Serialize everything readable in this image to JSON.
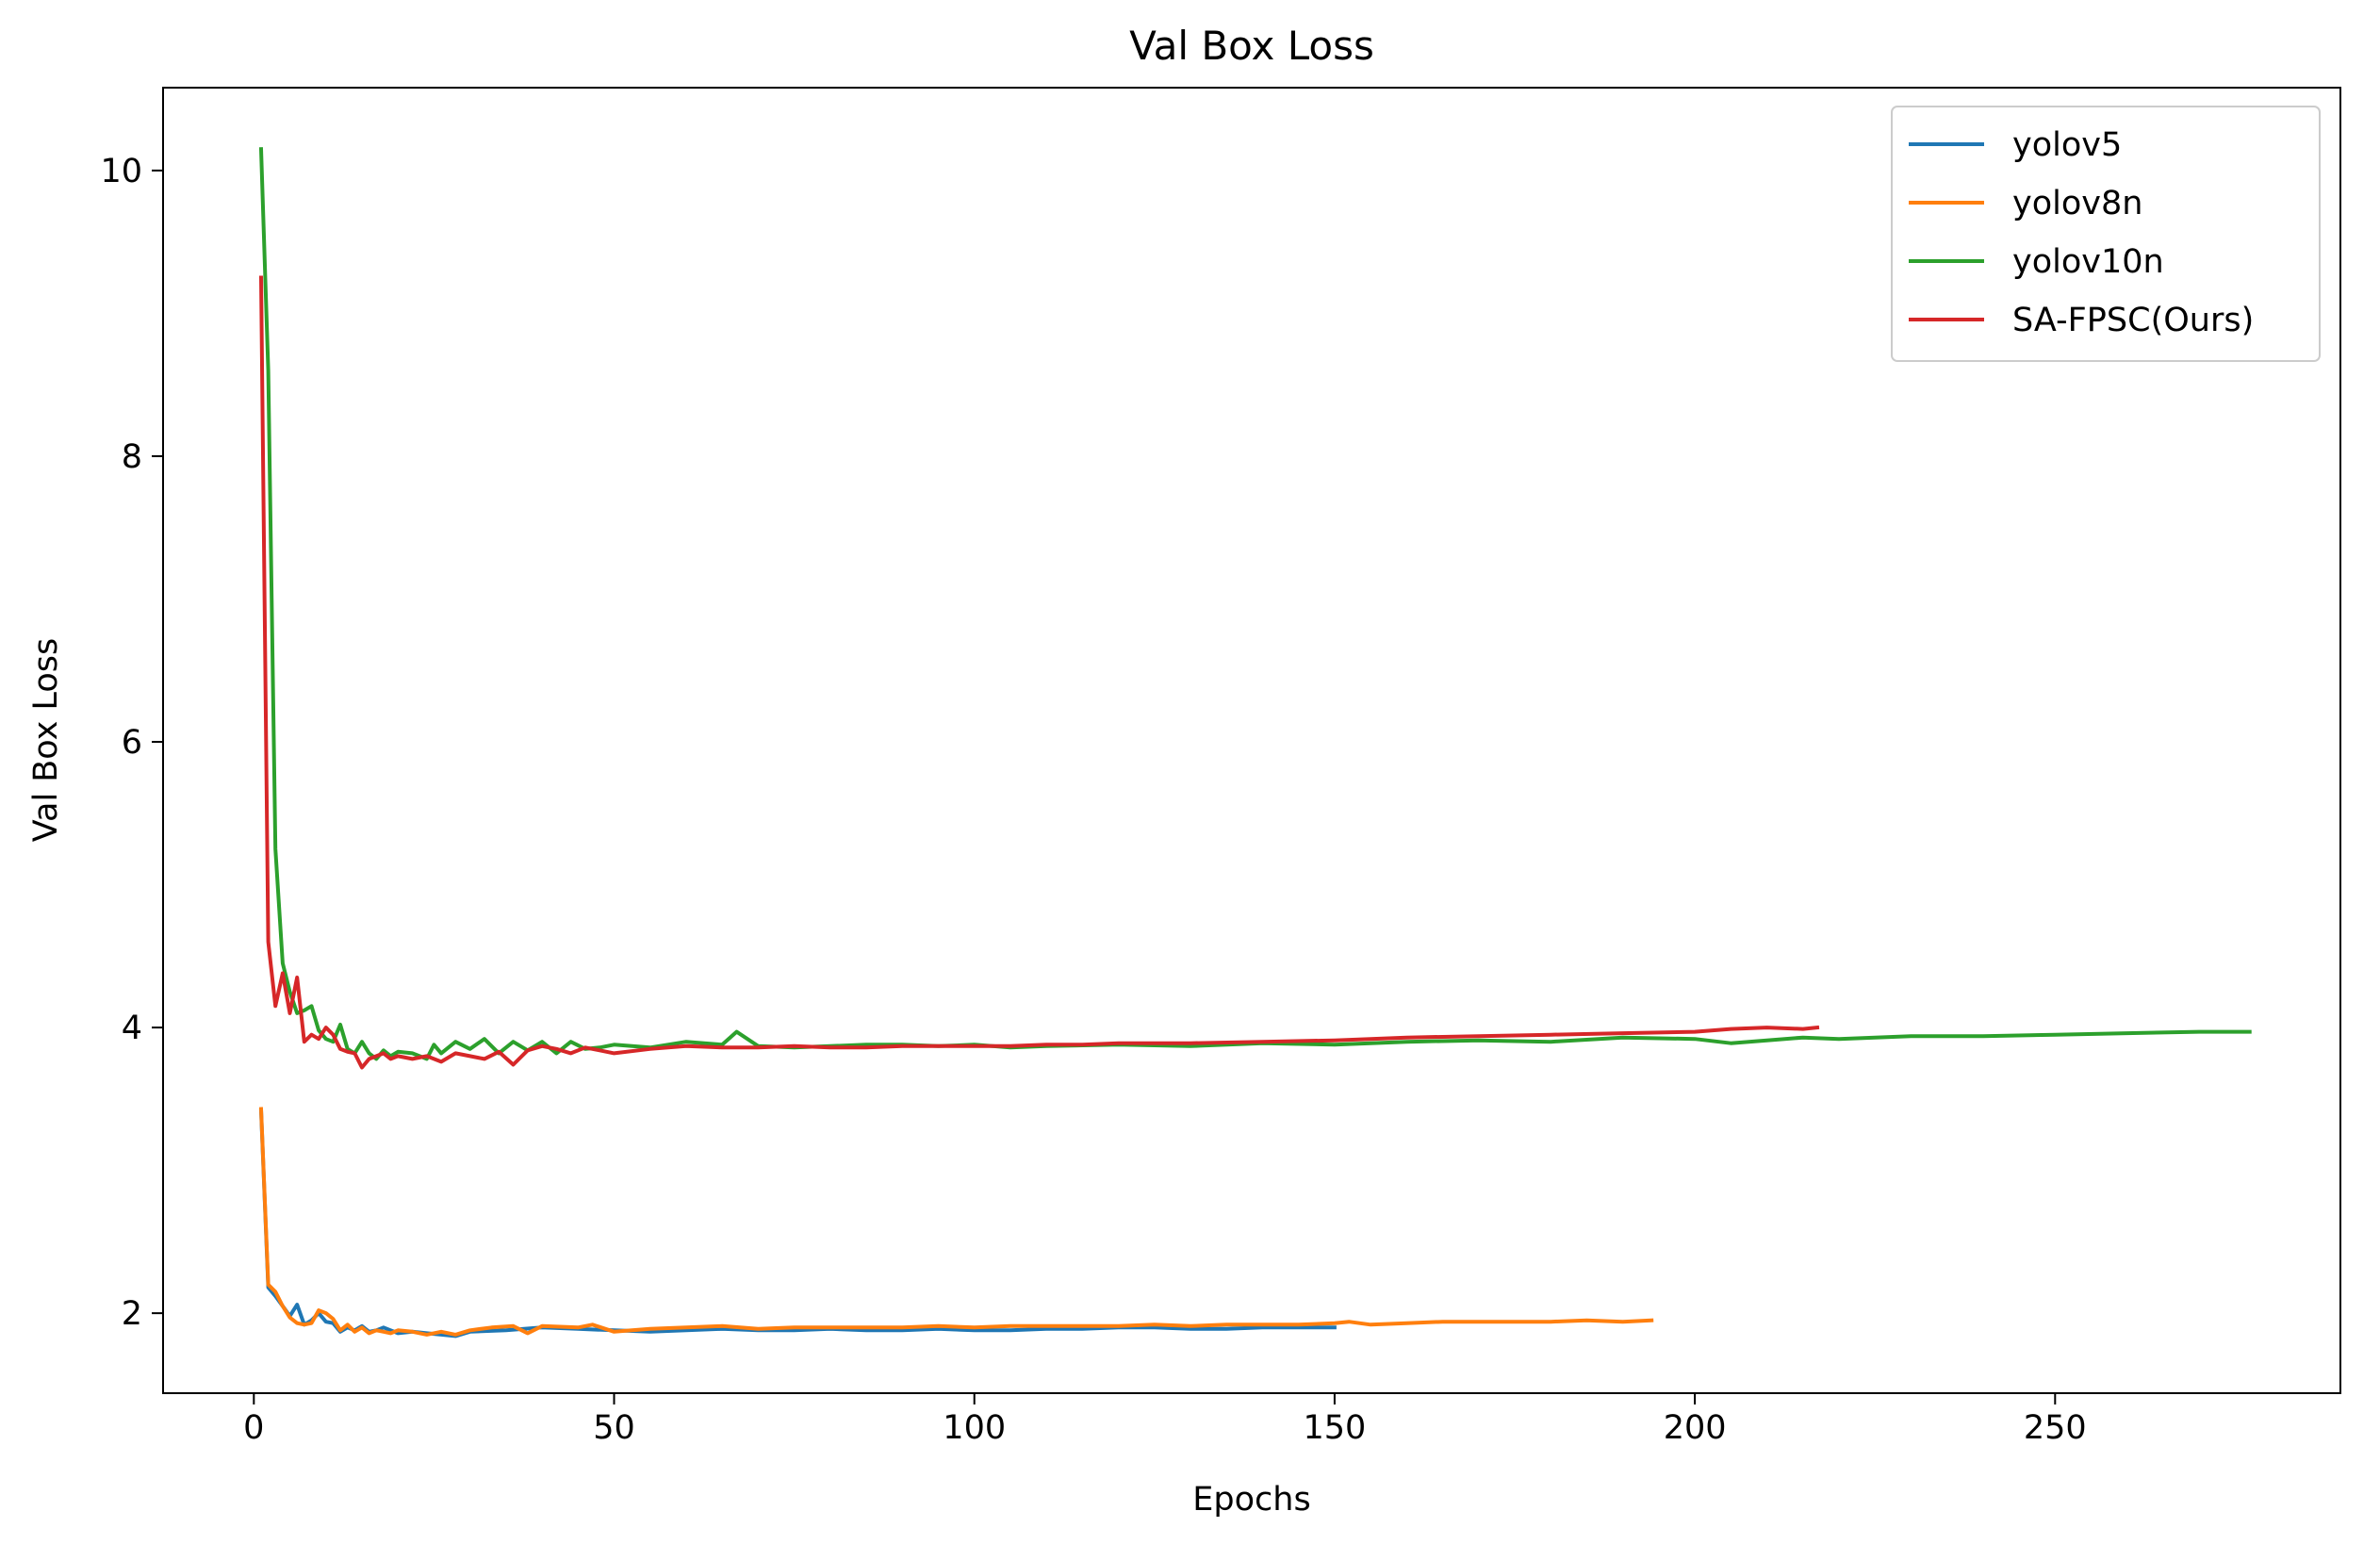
{
  "chart_data": {
    "type": "line",
    "title": "Val Box Loss",
    "xlabel": "Epochs",
    "ylabel": "Val Box Loss",
    "xlim": [
      -12.6,
      289.6
    ],
    "ylim": [
      1.44,
      10.58
    ],
    "xticks": [
      0,
      50,
      100,
      150,
      200,
      250
    ],
    "yticks": [
      2,
      4,
      6,
      8,
      10
    ],
    "grid": false,
    "legend_position": "top-right",
    "series": [
      {
        "name": "yolov5",
        "color": "#1f77b4",
        "x": [
          1,
          2,
          3,
          4,
          5,
          6,
          7,
          8,
          9,
          10,
          11,
          12,
          13,
          14,
          15,
          16,
          17,
          18,
          19,
          20,
          22,
          24,
          26,
          28,
          30,
          35,
          40,
          45,
          50,
          55,
          60,
          65,
          70,
          75,
          80,
          85,
          90,
          95,
          100,
          105,
          110,
          115,
          120,
          125,
          130,
          135,
          140,
          145,
          150
        ],
        "y": [
          3.42,
          2.18,
          2.12,
          2.05,
          1.98,
          2.06,
          1.92,
          1.95,
          2.0,
          1.94,
          1.93,
          1.87,
          1.9,
          1.88,
          1.91,
          1.87,
          1.88,
          1.9,
          1.88,
          1.86,
          1.87,
          1.86,
          1.85,
          1.84,
          1.87,
          1.88,
          1.9,
          1.89,
          1.88,
          1.87,
          1.88,
          1.89,
          1.88,
          1.88,
          1.89,
          1.88,
          1.88,
          1.89,
          1.88,
          1.88,
          1.89,
          1.89,
          1.9,
          1.9,
          1.89,
          1.89,
          1.9,
          1.9,
          1.9
        ]
      },
      {
        "name": "yolov8n",
        "color": "#ff7f0e",
        "x": [
          1,
          2,
          3,
          4,
          5,
          6,
          7,
          8,
          9,
          10,
          11,
          12,
          13,
          14,
          15,
          16,
          17,
          18,
          19,
          20,
          22,
          24,
          26,
          28,
          30,
          33,
          36,
          38,
          40,
          45,
          47,
          50,
          55,
          60,
          65,
          70,
          75,
          80,
          85,
          90,
          95,
          100,
          105,
          110,
          115,
          120,
          125,
          130,
          135,
          140,
          145,
          150,
          152,
          155,
          160,
          165,
          170,
          175,
          180,
          185,
          190,
          194
        ],
        "y": [
          3.43,
          2.2,
          2.15,
          2.05,
          1.97,
          1.93,
          1.92,
          1.93,
          2.02,
          2.0,
          1.96,
          1.88,
          1.92,
          1.87,
          1.9,
          1.86,
          1.88,
          1.87,
          1.86,
          1.88,
          1.87,
          1.85,
          1.87,
          1.85,
          1.88,
          1.9,
          1.91,
          1.86,
          1.91,
          1.9,
          1.92,
          1.87,
          1.89,
          1.9,
          1.91,
          1.89,
          1.9,
          1.9,
          1.9,
          1.9,
          1.91,
          1.9,
          1.91,
          1.91,
          1.91,
          1.91,
          1.92,
          1.91,
          1.92,
          1.92,
          1.92,
          1.93,
          1.94,
          1.92,
          1.93,
          1.94,
          1.94,
          1.94,
          1.94,
          1.95,
          1.94,
          1.95
        ]
      },
      {
        "name": "yolov10n",
        "color": "#2ca02c",
        "x": [
          1,
          2,
          3,
          4,
          5,
          6,
          7,
          8,
          9,
          10,
          11,
          12,
          13,
          14,
          15,
          16,
          17,
          18,
          19,
          20,
          22,
          24,
          25,
          26,
          28,
          30,
          32,
          34,
          36,
          38,
          40,
          42,
          44,
          46,
          48,
          50,
          55,
          60,
          65,
          67,
          70,
          75,
          80,
          85,
          90,
          95,
          100,
          105,
          110,
          120,
          130,
          140,
          150,
          160,
          170,
          180,
          190,
          200,
          205,
          210,
          215,
          220,
          230,
          240,
          250,
          260,
          270,
          277
        ],
        "y": [
          10.15,
          8.6,
          5.25,
          4.45,
          4.25,
          4.1,
          4.12,
          4.15,
          3.98,
          3.92,
          3.9,
          4.02,
          3.85,
          3.82,
          3.9,
          3.82,
          3.78,
          3.84,
          3.8,
          3.83,
          3.82,
          3.78,
          3.88,
          3.82,
          3.9,
          3.85,
          3.92,
          3.82,
          3.9,
          3.84,
          3.9,
          3.82,
          3.9,
          3.85,
          3.86,
          3.88,
          3.86,
          3.9,
          3.88,
          3.97,
          3.87,
          3.86,
          3.87,
          3.88,
          3.88,
          3.87,
          3.88,
          3.86,
          3.87,
          3.88,
          3.87,
          3.89,
          3.88,
          3.9,
          3.91,
          3.9,
          3.93,
          3.92,
          3.89,
          3.91,
          3.93,
          3.92,
          3.94,
          3.94,
          3.95,
          3.96,
          3.97,
          3.97
        ]
      },
      {
        "name": "SA-FPSC(Ours)",
        "color": "#d62728",
        "x": [
          1,
          2,
          3,
          4,
          5,
          6,
          7,
          8,
          9,
          10,
          11,
          12,
          13,
          14,
          15,
          16,
          17,
          18,
          19,
          20,
          22,
          24,
          26,
          28,
          30,
          32,
          34,
          36,
          38,
          40,
          42,
          44,
          46,
          48,
          50,
          55,
          60,
          65,
          70,
          75,
          80,
          85,
          90,
          95,
          100,
          105,
          110,
          115,
          120,
          130,
          140,
          150,
          160,
          170,
          180,
          190,
          200,
          205,
          210,
          215,
          217
        ],
        "y": [
          9.25,
          4.6,
          4.15,
          4.38,
          4.1,
          4.35,
          3.9,
          3.95,
          3.92,
          4.0,
          3.95,
          3.85,
          3.83,
          3.82,
          3.72,
          3.78,
          3.8,
          3.82,
          3.78,
          3.8,
          3.78,
          3.8,
          3.76,
          3.82,
          3.8,
          3.78,
          3.83,
          3.74,
          3.84,
          3.87,
          3.85,
          3.82,
          3.86,
          3.84,
          3.82,
          3.85,
          3.87,
          3.86,
          3.86,
          3.87,
          3.86,
          3.86,
          3.87,
          3.87,
          3.87,
          3.87,
          3.88,
          3.88,
          3.89,
          3.89,
          3.9,
          3.91,
          3.93,
          3.94,
          3.95,
          3.96,
          3.97,
          3.99,
          4.0,
          3.99,
          4.0
        ]
      }
    ]
  }
}
